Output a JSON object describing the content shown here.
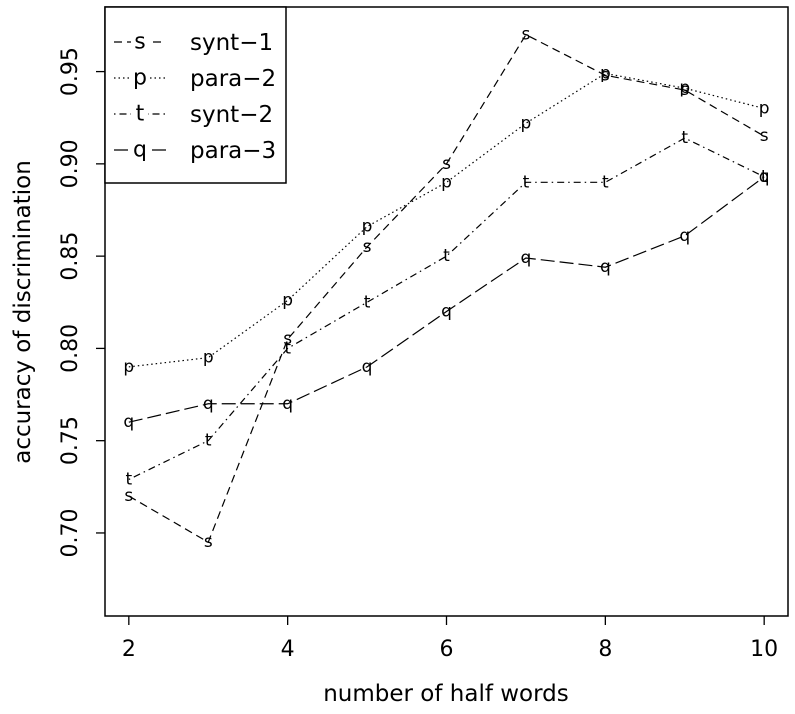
{
  "chart_data": {
    "type": "line",
    "xlabel": "number of half words",
    "ylabel": "accuracy of discrimination",
    "xlim": [
      1.7,
      10.3
    ],
    "ylim": [
      0.655,
      0.985
    ],
    "xticks": [
      2,
      4,
      6,
      8,
      10
    ],
    "xtick_labels": [
      "2",
      "4",
      "6",
      "8",
      "10"
    ],
    "yticks": [
      0.7,
      0.75,
      0.8,
      0.85,
      0.9,
      0.95
    ],
    "ytick_labels": [
      "0.70",
      "0.75",
      "0.80",
      "0.85",
      "0.90",
      "0.95"
    ],
    "grid": false,
    "legend_position": "top-left",
    "x": [
      2,
      3,
      4,
      5,
      6,
      7,
      8,
      9,
      10
    ],
    "series": [
      {
        "name": "synt−1",
        "marker": "s",
        "linestyle": "dashed",
        "values": [
          0.72,
          0.695,
          0.805,
          0.855,
          0.9,
          0.97,
          0.948,
          0.94,
          0.915
        ]
      },
      {
        "name": "para−2",
        "marker": "p",
        "linestyle": "dotted",
        "values": [
          0.79,
          0.795,
          0.826,
          0.866,
          0.89,
          0.922,
          0.949,
          0.941,
          0.93
        ]
      },
      {
        "name": "synt−2",
        "marker": "t",
        "linestyle": "dotdash",
        "values": [
          0.729,
          0.75,
          0.8,
          0.825,
          0.85,
          0.89,
          0.89,
          0.914,
          0.893
        ]
      },
      {
        "name": "para−3",
        "marker": "q",
        "linestyle": "longdash",
        "values": [
          0.76,
          0.77,
          0.77,
          0.79,
          0.82,
          0.849,
          0.844,
          0.861,
          0.893
        ]
      }
    ]
  }
}
